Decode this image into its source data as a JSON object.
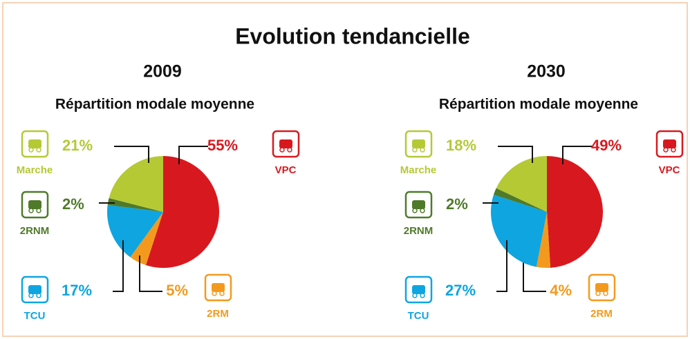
{
  "title": "Evolution tendancielle",
  "chart_data": [
    {
      "type": "pie",
      "title": "2009",
      "subtitle": "Répartition modale moyenne",
      "categories": [
        "VPC",
        "2RM",
        "TCU",
        "2RNM",
        "Marche"
      ],
      "values": [
        55,
        5,
        17,
        2,
        21
      ],
      "value_labels": [
        "55%",
        "5%",
        "17%",
        "2%",
        "21%"
      ],
      "colors": [
        "#d7191f",
        "#f39a1e",
        "#0ea5e0",
        "#4f7a2a",
        "#b5c935"
      ]
    },
    {
      "type": "pie",
      "title": "2030",
      "subtitle": "Répartition modale moyenne",
      "categories": [
        "VPC",
        "2RM",
        "TCU",
        "2RNM",
        "Marche"
      ],
      "values": [
        49,
        4,
        27,
        2,
        18
      ],
      "value_labels": [
        "49%",
        "4%",
        "27%",
        "2%",
        "18%"
      ],
      "colors": [
        "#d7191f",
        "#f39a1e",
        "#0ea5e0",
        "#4f7a2a",
        "#b5c935"
      ]
    }
  ]
}
